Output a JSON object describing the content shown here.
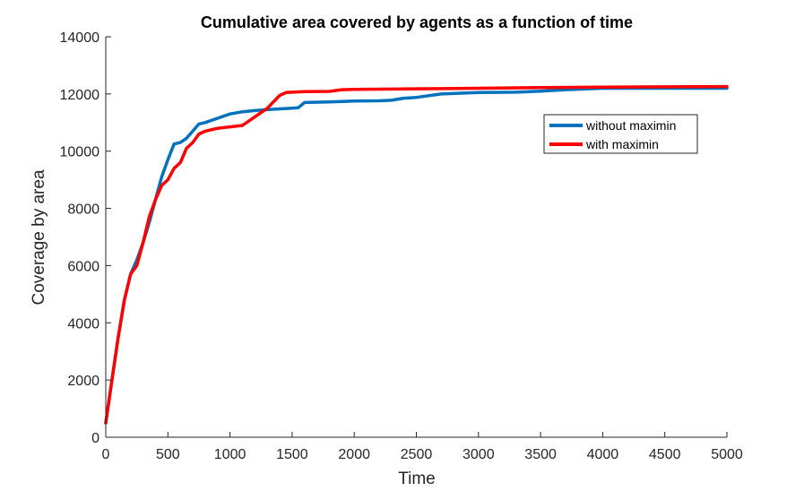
{
  "chart_data": {
    "type": "line",
    "title": "Cumulative area covered by agents as a function of time",
    "xlabel": "Time",
    "ylabel": "Coverage by area",
    "xlim": [
      0,
      5000
    ],
    "ylim": [
      0,
      14000
    ],
    "xticks": [
      "0",
      "500",
      "1000",
      "1500",
      "2000",
      "2500",
      "3000",
      "3500",
      "4000",
      "4500",
      "5000"
    ],
    "yticks": [
      "0",
      "2000",
      "4000",
      "6000",
      "8000",
      "10000",
      "12000",
      "14000"
    ],
    "grid": false,
    "legend_position": "top-right",
    "series": [
      {
        "name": "without maximin",
        "color": "#0072bd",
        "x": [
          0,
          50,
          100,
          150,
          200,
          250,
          300,
          350,
          400,
          450,
          500,
          550,
          600,
          650,
          700,
          750,
          800,
          900,
          1000,
          1100,
          1200,
          1300,
          1400,
          1500,
          1550,
          1600,
          1800,
          2000,
          2200,
          2300,
          2400,
          2500,
          2700,
          3000,
          3300,
          3500,
          3700,
          4000,
          4500,
          5000
        ],
        "y": [
          500,
          2000,
          3500,
          4800,
          5700,
          6200,
          6800,
          7500,
          8300,
          9100,
          9700,
          10250,
          10300,
          10450,
          10700,
          10950,
          11000,
          11150,
          11300,
          11380,
          11420,
          11450,
          11480,
          11500,
          11520,
          11700,
          11720,
          11750,
          11760,
          11780,
          11850,
          11880,
          12000,
          12050,
          12060,
          12100,
          12150,
          12200,
          12200,
          12200
        ]
      },
      {
        "name": "with maximin",
        "color": "#ff0000",
        "x": [
          0,
          50,
          100,
          150,
          200,
          250,
          300,
          350,
          400,
          450,
          500,
          550,
          600,
          650,
          700,
          750,
          800,
          900,
          1000,
          1100,
          1200,
          1300,
          1400,
          1450,
          1500,
          1600,
          1800,
          1900,
          2000,
          2500,
          3000,
          3500,
          4000,
          4500,
          5000
        ],
        "y": [
          500,
          2000,
          3500,
          4800,
          5700,
          6000,
          6800,
          7700,
          8300,
          8800,
          9000,
          9400,
          9600,
          10100,
          10300,
          10600,
          10700,
          10800,
          10850,
          10900,
          11200,
          11500,
          11950,
          12050,
          12060,
          12080,
          12090,
          12150,
          12160,
          12180,
          12200,
          12220,
          12240,
          12250,
          12260
        ]
      }
    ]
  }
}
